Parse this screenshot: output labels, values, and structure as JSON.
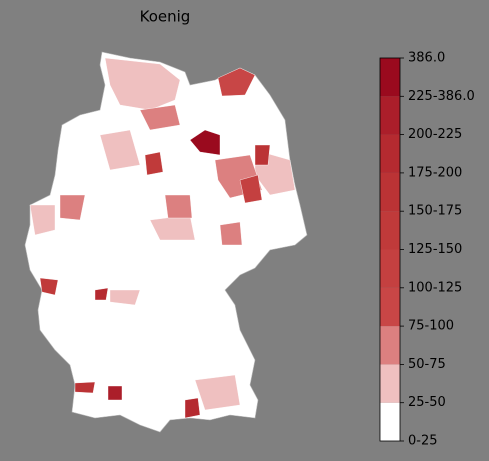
{
  "title": "Koenig",
  "colorbar": {
    "labels": [
      "0-25",
      "25-50",
      "50-75",
      "75-100",
      "100-125",
      "125-150",
      "150-175",
      "175-200",
      "200-225",
      "225-386.0",
      "386.0"
    ],
    "colors": [
      "#ffffff",
      "#efc0c0",
      "#dc8080",
      "#c84646",
      "#c44040",
      "#c03a3a",
      "#bb3335",
      "#b52a30",
      "#ab1e2a",
      "#9a0a1e"
    ]
  }
}
